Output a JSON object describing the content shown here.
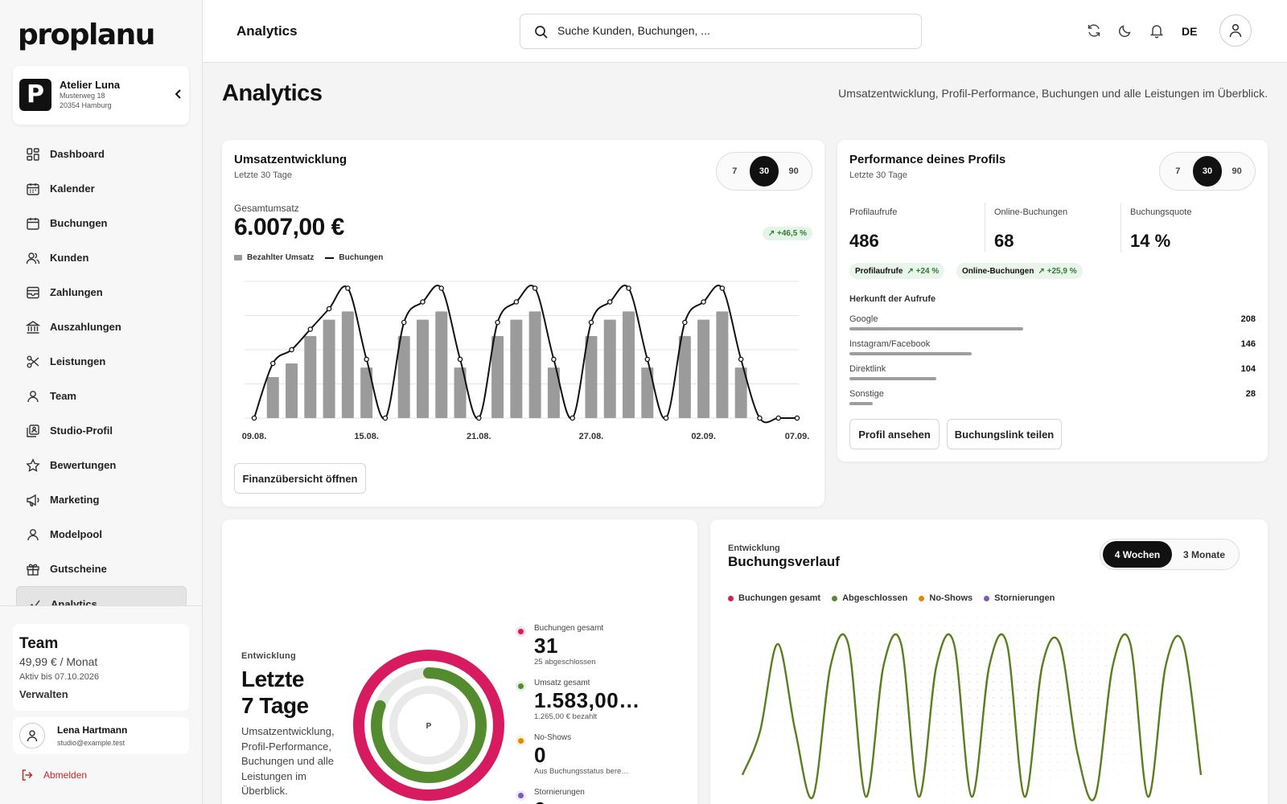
{
  "brand": {
    "logo_text": "proplanu"
  },
  "studio": {
    "initial": "P",
    "name": "Atelier Luna",
    "street": "Musterweg 18",
    "city": "20354 Hamburg"
  },
  "nav": [
    {
      "label": "Dashboard",
      "icon": "dashboard-icon"
    },
    {
      "label": "Kalender",
      "icon": "calendar-icon"
    },
    {
      "label": "Buchungen",
      "icon": "bookings-icon"
    },
    {
      "label": "Kunden",
      "icon": "customers-icon"
    },
    {
      "label": "Zahlungen",
      "icon": "payments-icon"
    },
    {
      "label": "Auszahlungen",
      "icon": "bank-icon"
    },
    {
      "label": "Leistungen",
      "icon": "scissors-icon"
    },
    {
      "label": "Team",
      "icon": "team-icon"
    },
    {
      "label": "Studio-Profil",
      "icon": "profile-icon"
    },
    {
      "label": "Bewertungen",
      "icon": "star-icon"
    },
    {
      "label": "Marketing",
      "icon": "megaphone-icon"
    },
    {
      "label": "Modelpool",
      "icon": "modelpool-icon"
    },
    {
      "label": "Gutscheine",
      "icon": "gift-icon"
    },
    {
      "label": "Analytics",
      "icon": "analytics-icon",
      "active": true
    }
  ],
  "plan": {
    "name": "Team",
    "price": "49,99 € / Monat",
    "valid_until": "Aktiv bis 07.10.2026",
    "manage_label": "Verwalten"
  },
  "user": {
    "name": "Lena Hartmann",
    "email": "studio@example.test"
  },
  "logout_label": "Abmelden",
  "topbar": {
    "title": "Analytics",
    "search_placeholder": "Suche Kunden, Buchungen, ...",
    "language": "DE"
  },
  "page": {
    "title": "Analytics",
    "subtitle": "Umsatzentwicklung, Profil-Performance, Buchungen und alle Leistungen im Überblick."
  },
  "revenue_card": {
    "title": "Umsatzentwicklung",
    "period": "Letzte 30 Tage",
    "ranges": [
      "7",
      "30",
      "90"
    ],
    "active_range": "30",
    "total_label": "Gesamtumsatz",
    "total_value": "6.007,00 €",
    "delta": "↗ +46,5 %",
    "legend_bars": "Bezahlter Umsatz",
    "legend_line": "Buchungen",
    "button_label": "Finanzübersicht öffnen"
  },
  "profile_card": {
    "title": "Performance deines Profils",
    "period": "Letzte 30 Tage",
    "ranges": [
      "7",
      "30",
      "90"
    ],
    "active_range": "30",
    "kpis": [
      {
        "label": "Profilaufrufe",
        "value": "486"
      },
      {
        "label": "Online-Buchungen",
        "value": "68"
      },
      {
        "label": "Buchungsquote",
        "value": "14 %"
      }
    ],
    "chips": [
      {
        "label": "Profilaufrufe",
        "delta": "↗ +24 %"
      },
      {
        "label": "Online-Buchungen",
        "delta": "↗ +25,9 %"
      }
    ],
    "sources_title": "Herkunft der Aufrufe",
    "sources": [
      {
        "name": "Google",
        "value": 208
      },
      {
        "name": "Instagram/Facebook",
        "value": 146
      },
      {
        "name": "Direktlink",
        "value": 104
      },
      {
        "name": "Sonstige",
        "value": 28
      }
    ],
    "button_view": "Profil ansehen",
    "button_share": "Buchungslink teilen"
  },
  "bookings_card": {
    "eyebrow": "Entwicklung",
    "heading": "Letzte 7 Tage",
    "description": "Umsatzentwicklung, Profil-Performance, Buchungen und alle Leistungen im Überblick.",
    "ring_center": "P",
    "stats": [
      {
        "label": "Buchungen gesamt",
        "value": "31",
        "sub": "25 abgeschlossen",
        "color": "#d81b60"
      },
      {
        "label": "Umsatz gesamt",
        "value": "1.583,00…",
        "sub": "1.265,00 € bezahlt",
        "color": "#558b2f"
      },
      {
        "label": "No-Shows",
        "value": "0",
        "sub": "Aus Buchungsstatus bere…",
        "color": "#e08a00"
      },
      {
        "label": "Stornierungen",
        "value": "0",
        "sub": "",
        "color": "#7e57c2"
      }
    ]
  },
  "history_card": {
    "eyebrow": "Entwicklung",
    "title": "Buchungsverlauf",
    "ranges": [
      "4 Wochen",
      "3 Monate"
    ],
    "active_range": "4 Wochen",
    "legend": [
      {
        "name": "Buchungen gesamt",
        "color": "#d81b60"
      },
      {
        "name": "Abgeschlossen",
        "color": "#558b2f"
      },
      {
        "name": "No-Shows",
        "color": "#e08a00"
      },
      {
        "name": "Stornierungen",
        "color": "#7e57c2"
      }
    ]
  },
  "chart_data": [
    {
      "type": "bar",
      "title": "Umsatzentwicklung",
      "categories": [
        "09.08.",
        "10.08.",
        "11.08.",
        "12.08.",
        "13.08.",
        "14.08.",
        "15.08.",
        "16.08.",
        "17.08.",
        "18.08.",
        "19.08.",
        "20.08.",
        "21.08.",
        "22.08.",
        "23.08.",
        "24.08.",
        "25.08.",
        "26.08.",
        "27.08.",
        "28.08.",
        "29.08.",
        "30.08.",
        "31.08.",
        "01.09.",
        "02.09.",
        "03.09.",
        "04.09.",
        "05.09.",
        "06.09.",
        "07.09."
      ],
      "tick_labels": [
        "09.08.",
        "15.08.",
        "21.08.",
        "27.08.",
        "02.09.",
        "07.09."
      ],
      "series": [
        {
          "name": "Bezahlter Umsatz",
          "type": "bar",
          "values": [
            0,
            3,
            4,
            6,
            7.2,
            7.8,
            3.7,
            0,
            6,
            7.2,
            7.8,
            3.7,
            0,
            6,
            7.2,
            7.8,
            3.7,
            0,
            6,
            7.2,
            7.8,
            3.7,
            0,
            6,
            7.2,
            7.8,
            3.7,
            0,
            0,
            0
          ]
        },
        {
          "name": "Buchungen",
          "type": "line",
          "values": [
            0,
            4,
            5,
            6.5,
            8,
            9.5,
            4.3,
            0,
            7,
            8.5,
            9.5,
            4.3,
            0,
            7,
            8.5,
            9.5,
            4.3,
            0,
            7,
            8.5,
            9.5,
            4.3,
            0,
            7,
            8.5,
            9.5,
            4.3,
            0,
            0,
            0
          ]
        }
      ],
      "ylim": [
        0,
        10
      ],
      "grid": true
    },
    {
      "type": "bar",
      "title": "Herkunft der Aufrufe",
      "categories": [
        "Google",
        "Instagram/Facebook",
        "Direktlink",
        "Sonstige"
      ],
      "values": [
        208,
        146,
        104,
        28
      ]
    },
    {
      "type": "pie",
      "title": "Letzte 7 Tage",
      "series": [
        {
          "name": "Buchungen gesamt",
          "value": 31,
          "fraction": 1.0,
          "color": "#d81b60"
        },
        {
          "name": "Abgeschlossen",
          "value": 25,
          "fraction": 0.81,
          "color": "#558b2f"
        }
      ]
    },
    {
      "type": "line",
      "title": "Buchungsverlauf",
      "series": [
        {
          "name": "Abgeschlossen",
          "values": [
            1,
            3,
            7,
            3,
            0,
            6,
            7,
            0,
            6,
            7,
            0,
            6,
            7,
            0,
            6,
            7,
            0,
            6,
            7,
            2,
            0,
            6,
            7,
            0,
            6,
            7,
            1
          ]
        }
      ]
    }
  ]
}
